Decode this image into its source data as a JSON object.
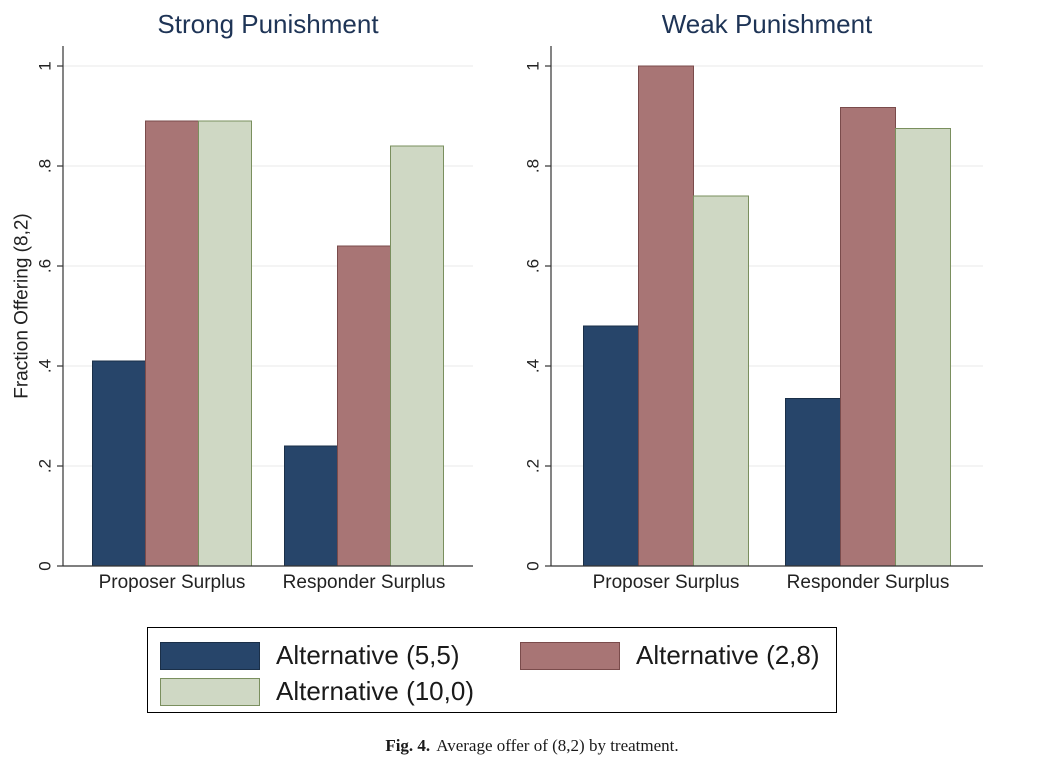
{
  "chart_data": [
    {
      "type": "bar",
      "title": "Strong Punishment",
      "ylabel": "Fraction Offering (8,2)",
      "xlabel": "",
      "ylim": [
        0,
        1
      ],
      "yticks": [
        "0",
        ".2",
        ".4",
        ".6",
        ".8",
        "1"
      ],
      "grid": true,
      "categories": [
        "Proposer Surplus",
        "Responder Surplus"
      ],
      "series": [
        {
          "name": "Alternative (5,5)",
          "values": [
            0.41,
            0.24
          ]
        },
        {
          "name": "Alternative (2,8)",
          "values": [
            0.89,
            0.64
          ]
        },
        {
          "name": "Alternative (10,0)",
          "values": [
            0.89,
            0.84
          ]
        }
      ]
    },
    {
      "type": "bar",
      "title": "Weak Punishment",
      "ylabel": "",
      "xlabel": "",
      "ylim": [
        0,
        1
      ],
      "yticks": [
        "0",
        ".2",
        ".4",
        ".6",
        ".8",
        "1"
      ],
      "grid": true,
      "categories": [
        "Proposer Surplus",
        "Responder Surplus"
      ],
      "series": [
        {
          "name": "Alternative (5,5)",
          "values": [
            0.48,
            0.335
          ]
        },
        {
          "name": "Alternative (2,8)",
          "values": [
            1.0,
            0.917
          ]
        },
        {
          "name": "Alternative (10,0)",
          "values": [
            0.74,
            0.875
          ]
        }
      ]
    }
  ],
  "legend": {
    "placement": "bottom",
    "items": [
      {
        "label": "Alternative (5,5)",
        "color": "#27456a",
        "border": "#1a2f48"
      },
      {
        "label": "Alternative (2,8)",
        "color": "#a87575",
        "border": "#7a4b4b"
      },
      {
        "label": "Alternative (10,0)",
        "color": "#cfd8c4",
        "border": "#7a8f5e"
      }
    ]
  },
  "caption": {
    "fig_label": "Fig. 4.",
    "text": "Average offer of (8,2) by treatment."
  }
}
